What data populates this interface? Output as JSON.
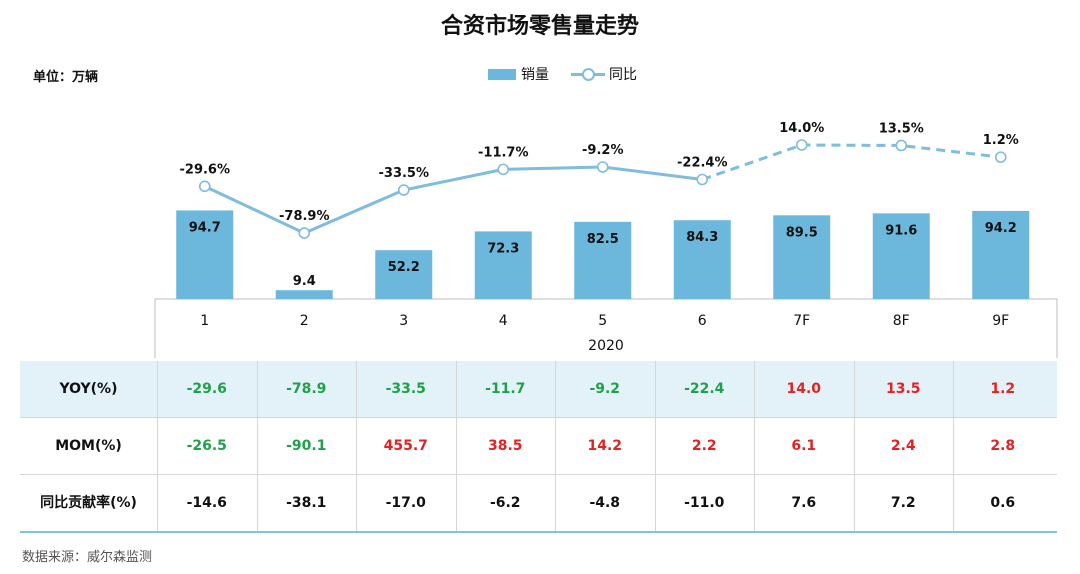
{
  "title": "合资市场零售量走势",
  "unit_label": "单位：万辆",
  "legend": {
    "bar": "销量",
    "line": "同比"
  },
  "source": "数据来源：威尔森监测",
  "colors": {
    "bar": "#6cb7dc",
    "line": "#7fbcdd",
    "positive": "#e32222",
    "negative": "#1fa14a"
  },
  "chart_data": {
    "type": "bar",
    "title": "合资市场零售量走势",
    "xlabel": "2020",
    "ylabel": "单位：万辆",
    "categories": [
      "1",
      "2",
      "3",
      "4",
      "5",
      "6",
      "7F",
      "8F",
      "9F"
    ],
    "series": [
      {
        "name": "销量",
        "type": "bar",
        "values": [
          94.7,
          9.4,
          52.2,
          72.3,
          82.5,
          84.3,
          89.5,
          91.6,
          94.2
        ]
      },
      {
        "name": "同比",
        "type": "line",
        "values": [
          -29.6,
          -78.9,
          -33.5,
          -11.7,
          -9.2,
          -22.4,
          14.0,
          13.5,
          1.2
        ],
        "labels": [
          "-29.6%",
          "-78.9%",
          "-33.5%",
          "-11.7%",
          "-9.2%",
          "-22.4%",
          "14.0%",
          "13.5%",
          "1.2%"
        ],
        "forecast_from_index": 6
      }
    ],
    "legend_position": "top-center",
    "grid": false
  },
  "table": {
    "rows": [
      {
        "label": "YOY(%)",
        "values": [
          "-29.6",
          "-78.9",
          "-33.5",
          "-11.7",
          "-9.2",
          "-22.4",
          "14.0",
          "13.5",
          "1.2"
        ]
      },
      {
        "label": "MOM(%)",
        "values": [
          "-26.5",
          "-90.1",
          "455.7",
          "38.5",
          "14.2",
          "2.2",
          "6.1",
          "2.4",
          "2.8"
        ]
      },
      {
        "label": "同比贡献率(%)",
        "values": [
          "-14.6",
          "-38.1",
          "-17.0",
          "-6.2",
          "-4.8",
          "-11.0",
          "7.6",
          "7.2",
          "0.6"
        ]
      }
    ]
  }
}
